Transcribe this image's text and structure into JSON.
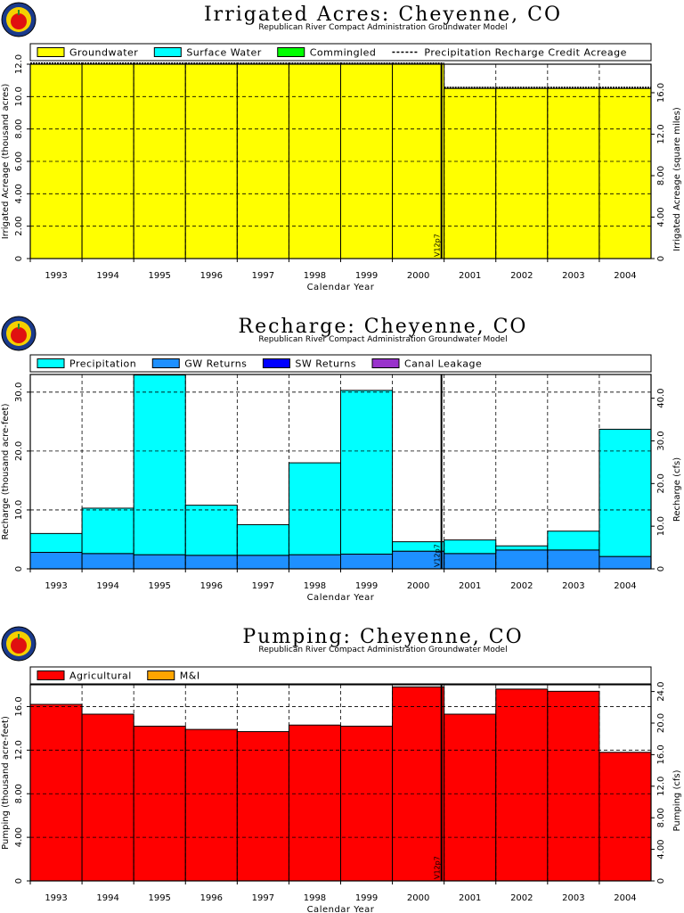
{
  "chart_data": [
    {
      "type": "area",
      "title": "Irrigated Acres: Cheyenne, CO",
      "subtitle": "Republican River Compact Administration Groundwater Model",
      "xlabel": "Calendar Year",
      "ylabel": "Irrigated Acreage (thousand acres)",
      "y2label": "Irrigated Acreage (square miles)",
      "categories": [
        "1993",
        "1994",
        "1995",
        "1996",
        "1997",
        "1998",
        "1999",
        "2000",
        "2001",
        "2002",
        "2003",
        "2004"
      ],
      "ylim": [
        0,
        12.0
      ],
      "yticks": [
        "12.0",
        "10.0",
        "8.00",
        "6.00",
        "4.00",
        "2.00",
        "0"
      ],
      "y2ticks": [
        "16.0",
        "12.0",
        "8.00",
        "4.00",
        "0"
      ],
      "series": [
        {
          "name": "Groundwater",
          "color": "#ffff00",
          "values": [
            12.0,
            12.0,
            12.0,
            12.0,
            12.0,
            12.0,
            12.0,
            12.0,
            10.5,
            10.5,
            10.5,
            10.5
          ]
        },
        {
          "name": "Surface Water",
          "color": "#00ffff",
          "values": [
            0,
            0,
            0,
            0,
            0,
            0,
            0,
            0,
            0,
            0,
            0,
            0
          ]
        },
        {
          "name": "Commingled",
          "color": "#00ff00",
          "values": [
            0,
            0,
            0,
            0,
            0,
            0,
            0,
            0,
            0,
            0,
            0,
            0
          ]
        }
      ],
      "line_series": {
        "name": "Precipitation Recharge Credit Acreage",
        "values": [
          12.0,
          12.0,
          12.0,
          12.0,
          12.0,
          12.0,
          12.0,
          12.0,
          10.5,
          10.5,
          10.5,
          10.5
        ]
      },
      "marker_label": "V12p7"
    },
    {
      "type": "area",
      "title": "Recharge: Cheyenne, CO",
      "subtitle": "Republican River Compact Administration Groundwater Model",
      "xlabel": "Calendar Year",
      "ylabel": "Recharge (thousand acre-feet)",
      "y2label": "Recharge (cfs)",
      "categories": [
        "1993",
        "1994",
        "1995",
        "1996",
        "1997",
        "1998",
        "1999",
        "2000",
        "2001",
        "2002",
        "2003",
        "2004"
      ],
      "ylim": [
        0,
        33.0
      ],
      "yticks": [
        "30.0",
        "20.0",
        "10.0",
        "0"
      ],
      "y2ticks": [
        "40.0",
        "30.0",
        "20.0",
        "10.0",
        "0"
      ],
      "series": [
        {
          "name": "GW Returns",
          "color": "#1e90ff",
          "values": [
            2.8,
            2.6,
            2.4,
            2.3,
            2.3,
            2.4,
            2.5,
            3.0,
            2.6,
            3.2,
            3.2,
            2.1
          ]
        },
        {
          "name": "SW Returns",
          "color": "#0000ff",
          "values": [
            0,
            0,
            0,
            0,
            0,
            0,
            0,
            0,
            0,
            0,
            0,
            0
          ]
        },
        {
          "name": "Canal Leakage",
          "color": "#9932cc",
          "values": [
            0,
            0,
            0,
            0,
            0,
            0,
            0,
            0,
            0,
            0,
            0,
            0
          ]
        },
        {
          "name": "Precipitation",
          "color": "#00ffff",
          "values": [
            3.2,
            7.7,
            30.5,
            8.5,
            5.2,
            15.6,
            27.8,
            1.6,
            2.3,
            0.7,
            3.2,
            21.6
          ]
        }
      ],
      "marker_label": "V12p7"
    },
    {
      "type": "area",
      "title": "Pumping: Cheyenne, CO",
      "subtitle": "Republican River Compact Administration Groundwater Model",
      "xlabel": "Calendar Year",
      "ylabel": "Pumping (thousand acre-feet)",
      "y2label": "Pumping (cfs)",
      "categories": [
        "1993",
        "1994",
        "1995",
        "1996",
        "1997",
        "1998",
        "1999",
        "2000",
        "2001",
        "2002",
        "2003",
        "2004"
      ],
      "ylim": [
        0,
        18.0
      ],
      "yticks": [
        "16.0",
        "12.0",
        "8.00",
        "4.00",
        "0"
      ],
      "y2ticks": [
        "24.0",
        "20.0",
        "16.0",
        "12.0",
        "8.00",
        "4.00",
        "0"
      ],
      "series": [
        {
          "name": "Agricultural",
          "color": "#ff0000",
          "values": [
            16.2,
            15.3,
            14.2,
            13.9,
            13.7,
            14.3,
            14.2,
            17.8,
            15.3,
            17.6,
            17.4,
            11.8
          ]
        },
        {
          "name": "M&I",
          "color": "#ffa500",
          "values": [
            0,
            0,
            0,
            0,
            0,
            0,
            0,
            0,
            0,
            0,
            0,
            0
          ]
        }
      ],
      "marker_label": "V12p7"
    }
  ]
}
